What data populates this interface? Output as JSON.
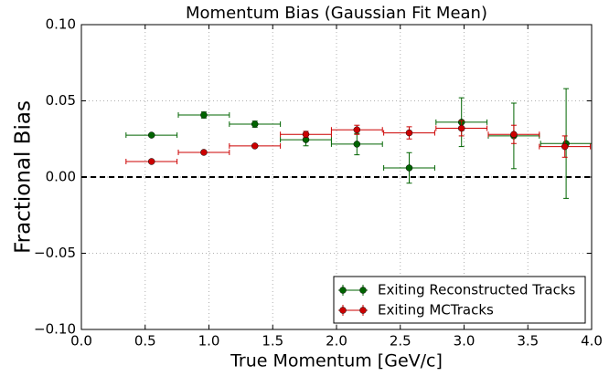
{
  "chart_data": {
    "type": "errorbar",
    "title": "Momentum Bias (Gaussian Fit Mean)",
    "x_label": "True Momentum [GeV/c]",
    "y_label": "Fractional Bias",
    "xlim": [
      0,
      4
    ],
    "ylim": [
      -0.1,
      0.1
    ],
    "xticks": [
      {
        "value": 0,
        "label": "0.0"
      },
      {
        "value": 0.5,
        "label": "0.5"
      },
      {
        "value": 1,
        "label": "1.0"
      },
      {
        "value": 1.5,
        "label": "1.5"
      },
      {
        "value": 2,
        "label": "2.0"
      },
      {
        "value": 2.5,
        "label": "2.5"
      },
      {
        "value": 3,
        "label": "3.0"
      },
      {
        "value": 3.5,
        "label": "3.5"
      },
      {
        "value": 4,
        "label": "4.0"
      }
    ],
    "yticks": [
      {
        "value": -0.1,
        "label": "−0.10"
      },
      {
        "value": -0.05,
        "label": "−0.05"
      },
      {
        "value": 0,
        "label": "0.00"
      },
      {
        "value": 0.05,
        "label": "0.05"
      },
      {
        "value": 0.1,
        "label": "0.10"
      }
    ],
    "grid": true,
    "reference_line": 0,
    "legend": "lower right",
    "series": [
      {
        "name": "Exiting Reconstructed Tracks",
        "color": "#006400",
        "x": [
          0.55,
          0.96,
          1.36,
          1.76,
          2.16,
          2.57,
          2.98,
          3.39,
          3.8
        ],
        "values": [
          0.0275,
          0.0407,
          0.0347,
          0.0245,
          0.0216,
          0.006,
          0.036,
          0.027,
          0.022
        ],
        "xerr": [
          0.2,
          0.2,
          0.2,
          0.2,
          0.2,
          0.2,
          0.2,
          0.2,
          0.2
        ],
        "yerr": [
          0.001,
          0.002,
          0.002,
          0.004,
          0.007,
          0.01,
          0.016,
          0.0215,
          0.036
        ]
      },
      {
        "name": "Exiting MCTracks",
        "color": "#cc0000",
        "x": [
          0.55,
          0.96,
          1.36,
          1.76,
          2.16,
          2.57,
          2.98,
          3.39,
          3.79
        ],
        "values": [
          0.0102,
          0.0162,
          0.0204,
          0.028,
          0.031,
          0.029,
          0.032,
          0.028,
          0.02
        ],
        "xerr": [
          0.2,
          0.2,
          0.2,
          0.2,
          0.2,
          0.2,
          0.2,
          0.2,
          0.2
        ],
        "yerr": [
          0.001,
          0.001,
          0.001,
          0.002,
          0.003,
          0.004,
          0.005,
          0.006,
          0.007
        ]
      }
    ]
  }
}
